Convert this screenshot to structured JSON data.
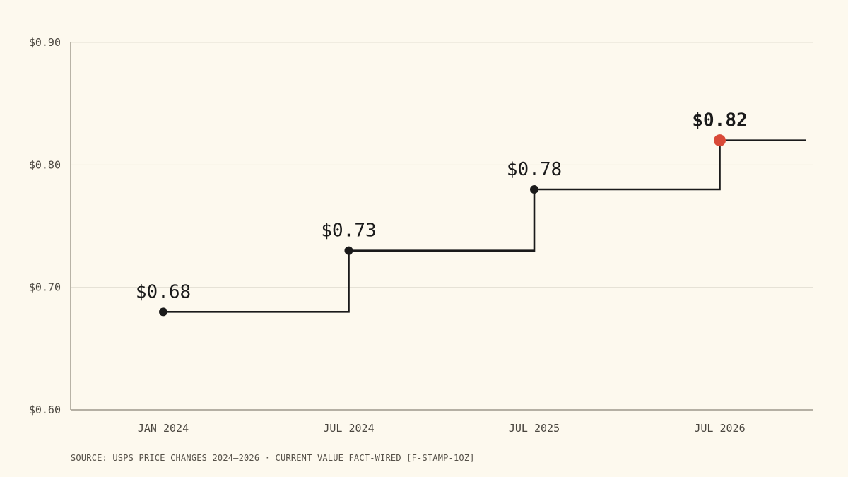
{
  "chart_data": {
    "type": "line",
    "step": true,
    "x": [
      "JAN 2024",
      "JUL 2024",
      "JUL 2025",
      "JUL 2026"
    ],
    "values": [
      0.68,
      0.73,
      0.78,
      0.82
    ],
    "data_labels": [
      "$0.68",
      "$0.73",
      "$0.78",
      "$0.82"
    ],
    "highlight_index": 3,
    "y_ticks": [
      {
        "value": 0.6,
        "label": "$0.60"
      },
      {
        "value": 0.7,
        "label": "$0.70"
      },
      {
        "value": 0.8,
        "label": "$0.80"
      },
      {
        "value": 0.9,
        "label": "$0.90"
      }
    ],
    "ylim": [
      0.6,
      0.9
    ],
    "grid": true,
    "title": "",
    "xlabel": "",
    "ylabel": ""
  },
  "colors": {
    "background": "#fdf9ee",
    "line": "#1a1a1a",
    "point": "#1a1a1a",
    "highlight": "#d94a38",
    "grid": "#e3dfd2",
    "axis": "#8a8578"
  },
  "footer": {
    "source": "SOURCE: USPS PRICE CHANGES 2024–2026 · CURRENT VALUE FACT-WIRED [F-STAMP-1OZ]"
  }
}
